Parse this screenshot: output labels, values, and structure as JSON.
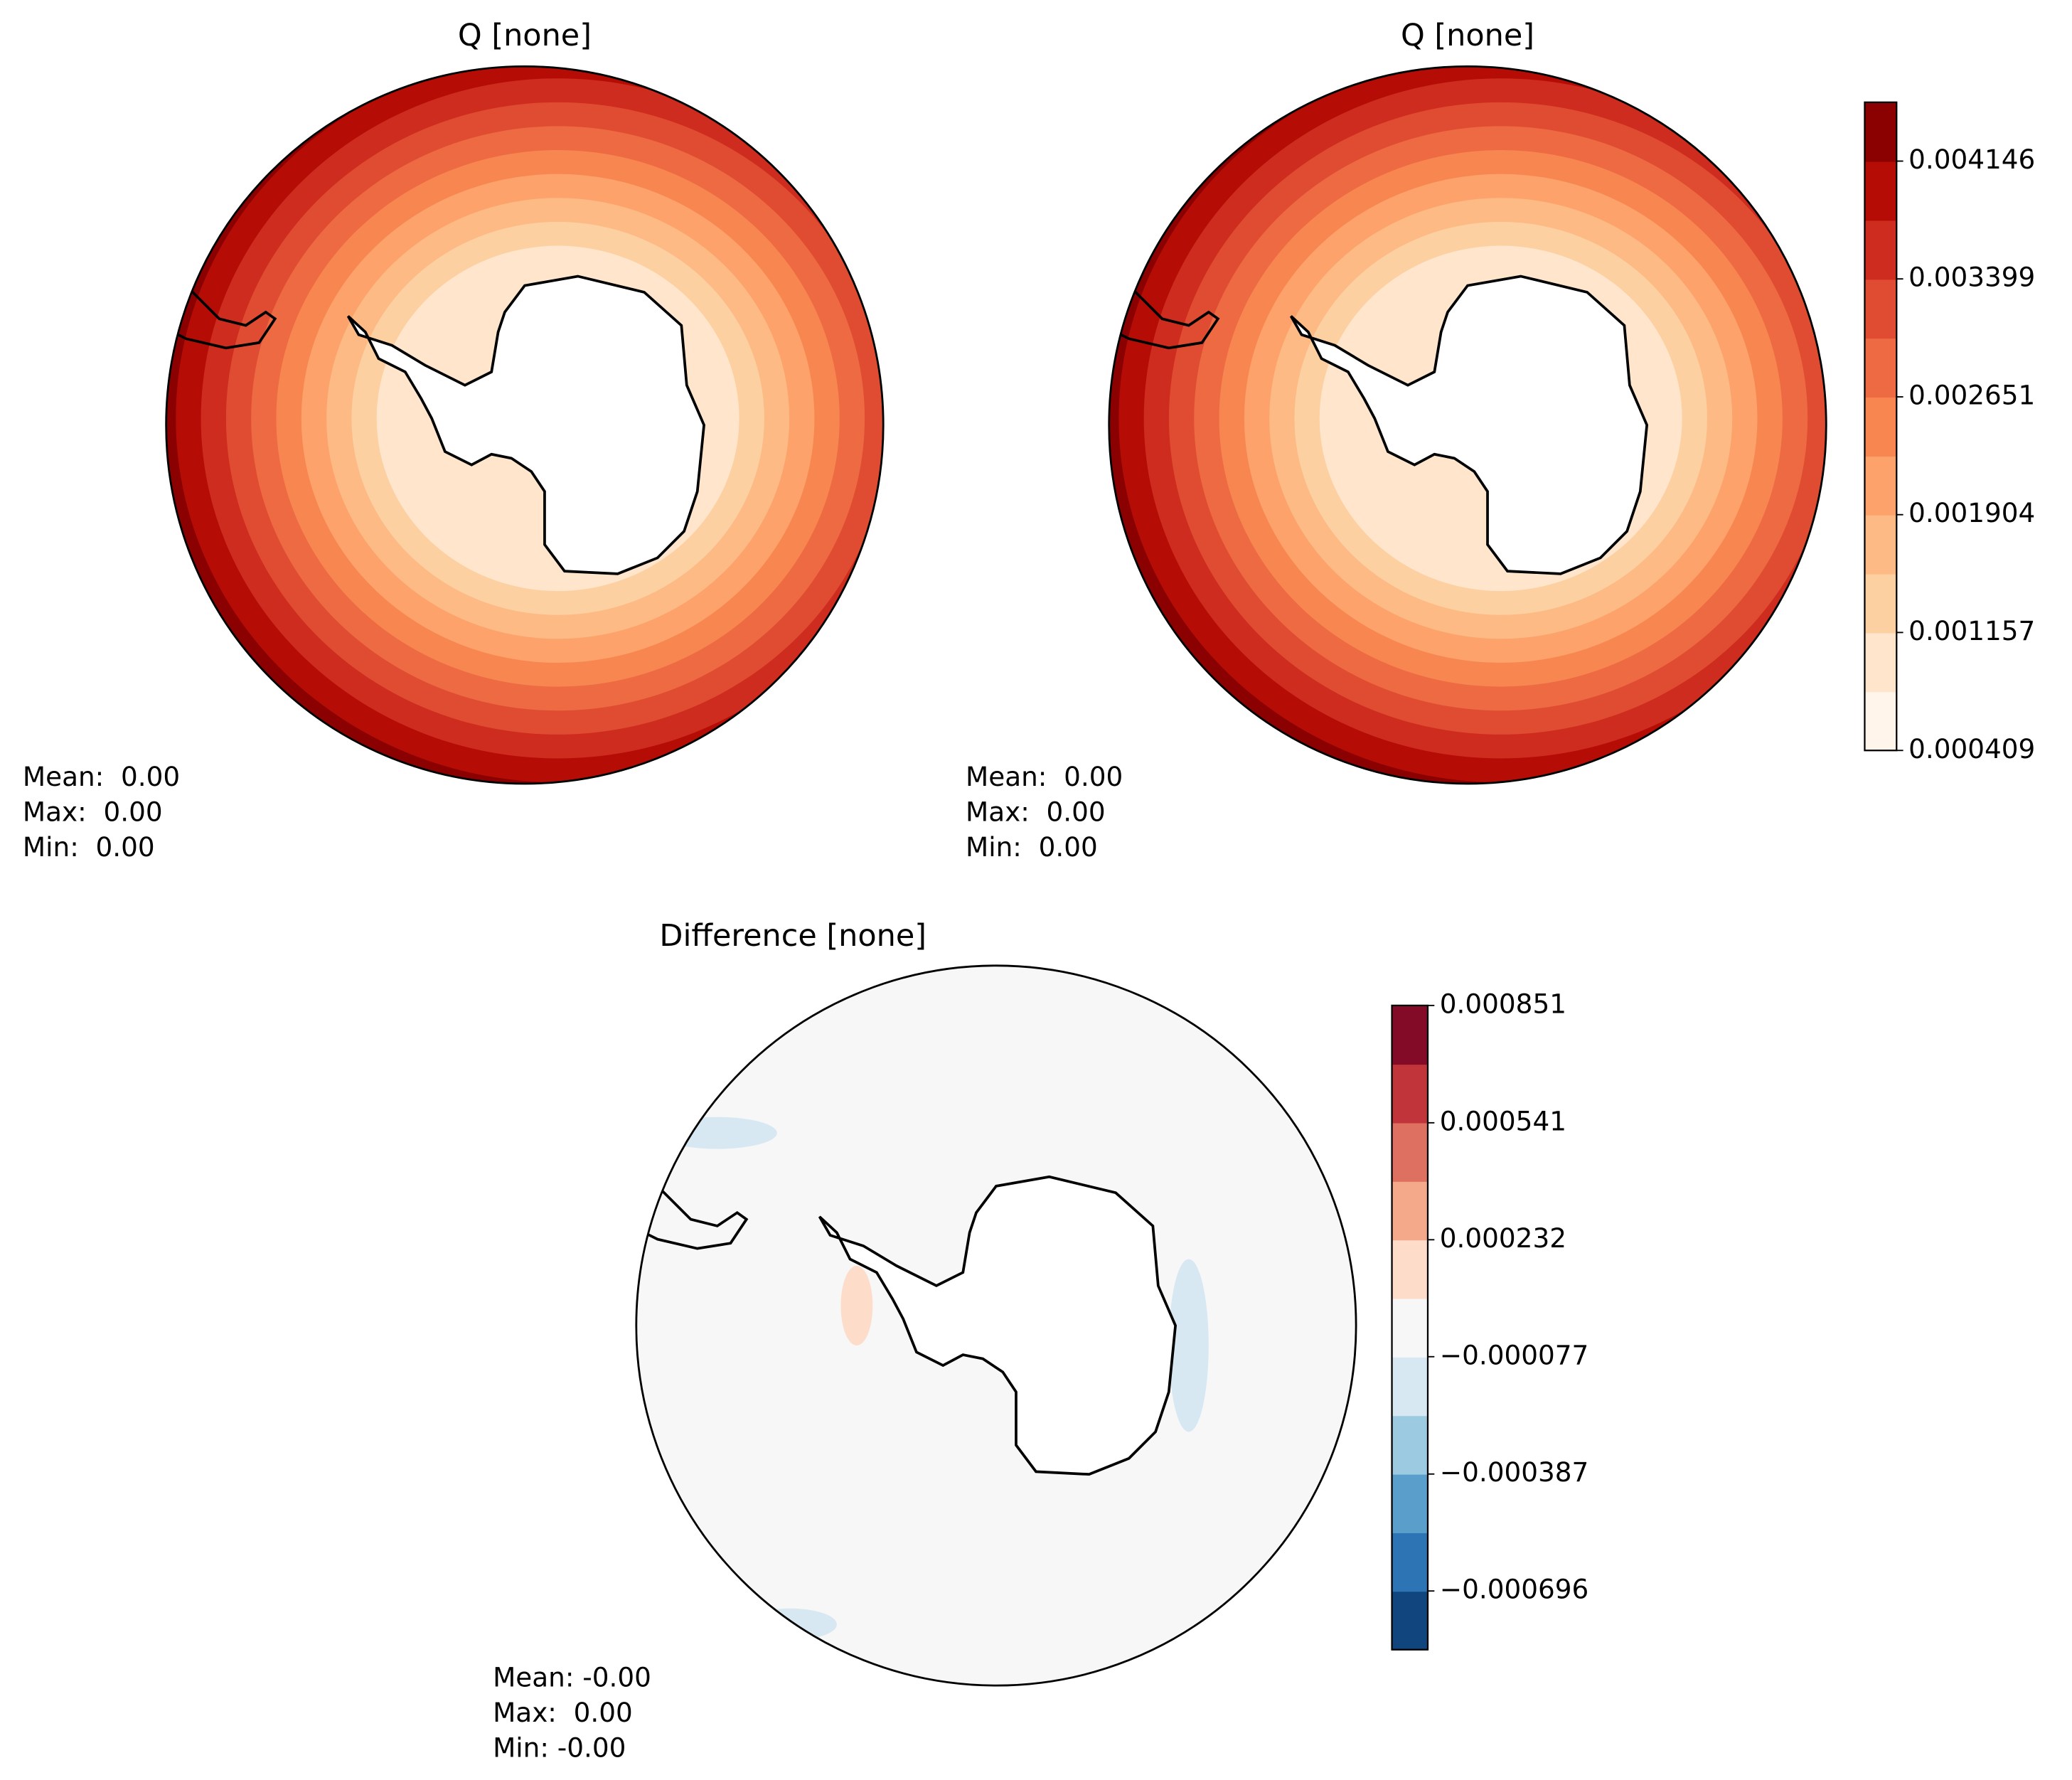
{
  "chart_data": [
    {
      "type": "contour_map",
      "title": "Q [none]",
      "stats": [
        "Mean:  0.00",
        "Max:  0.00",
        "Min:  0.00"
      ]
    },
    {
      "type": "contour_map",
      "title": "Q [none]",
      "stats": [
        "Mean:  0.00",
        "Max:  0.00",
        "Min:  0.00"
      ],
      "colorbar": {
        "lim": [
          0.000409,
          0.004519
        ],
        "ticks": [
          0.000409,
          0.001157,
          0.001904,
          0.002651,
          0.003399,
          0.004146
        ],
        "colors": [
          "#fff5eb",
          "#fee5cb",
          "#fdd0a2",
          "#fdba84",
          "#fca26a",
          "#f88650",
          "#ed6a42",
          "#e04c32",
          "#cd2c1e",
          "#b50d06",
          "#8b0000"
        ]
      }
    },
    {
      "type": "difference_map",
      "title": "Difference [none]",
      "stats": [
        "Mean: -0.00",
        "Max:  0.00",
        "Min: -0.00"
      ],
      "colorbar": {
        "lim": [
          -0.000851,
          0.000851
        ],
        "ticks": [
          {
            "value": -0.000696,
            "label": "−0.000696"
          },
          {
            "value": -0.000387,
            "label": "−0.000387"
          },
          {
            "value": -7.7e-05,
            "label": "−0.000077"
          },
          0.000232,
          0.000541,
          0.000851
        ],
        "colors": [
          "#10457d",
          "#2c74b4",
          "#5a9fcb",
          "#9ccae1",
          "#d7e8f2",
          "#f7f7f7",
          "#fddcca",
          "#f4a98b",
          "#dd7060",
          "#c1353a",
          "#830b27"
        ]
      }
    }
  ]
}
